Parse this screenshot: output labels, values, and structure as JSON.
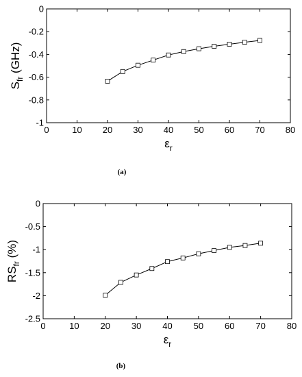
{
  "chart_data": [
    {
      "type": "line",
      "caption": "(a)",
      "xlabel": "ε",
      "xlabel_sub": "r",
      "ylabel": "S",
      "ylabel_sub": "fr",
      "ylabel_unit": " (GHz)",
      "xlim": [
        0,
        80
      ],
      "ylim": [
        -1,
        0
      ],
      "xticks": [
        0,
        10,
        20,
        30,
        40,
        50,
        60,
        70,
        80
      ],
      "yticks": [
        -1,
        -0.8,
        -0.6,
        -0.4,
        -0.2,
        0
      ],
      "xtick_labels": [
        "0",
        "10",
        "20",
        "30",
        "40",
        "50",
        "60",
        "70",
        "80"
      ],
      "ytick_labels": [
        "-1",
        "-0.8",
        "-0.6",
        "-0.4",
        "-0.2",
        "0"
      ],
      "grid": false,
      "series": [
        {
          "marker": "square",
          "color": "#000000",
          "x": [
            20,
            25,
            30,
            35,
            40,
            45,
            50,
            55,
            60,
            65,
            70
          ],
          "y": [
            -0.635,
            -0.55,
            -0.495,
            -0.45,
            -0.405,
            -0.375,
            -0.35,
            -0.328,
            -0.31,
            -0.293,
            -0.277
          ]
        }
      ]
    },
    {
      "type": "line",
      "caption": "(b)",
      "xlabel": "ε",
      "xlabel_sub": "r",
      "ylabel": "RS",
      "ylabel_sub": "fr",
      "ylabel_unit": " (%)",
      "xlim": [
        0,
        80
      ],
      "ylim": [
        -2.5,
        0
      ],
      "xticks": [
        0,
        10,
        20,
        30,
        40,
        50,
        60,
        70,
        80
      ],
      "yticks": [
        -2.5,
        -2,
        -1.5,
        -1,
        -0.5,
        0
      ],
      "xtick_labels": [
        "0",
        "10",
        "20",
        "30",
        "40",
        "50",
        "60",
        "70",
        "80"
      ],
      "ytick_labels": [
        "-2.5",
        "-2",
        "-1.5",
        "-1",
        "-0.5",
        "0"
      ],
      "grid": false,
      "series": [
        {
          "marker": "square",
          "color": "#000000",
          "x": [
            20,
            25,
            30,
            35,
            40,
            45,
            50,
            55,
            60,
            65,
            70
          ],
          "y": [
            -1.99,
            -1.71,
            -1.55,
            -1.41,
            -1.26,
            -1.18,
            -1.09,
            -1.02,
            -0.95,
            -0.91,
            -0.86
          ]
        }
      ]
    }
  ]
}
